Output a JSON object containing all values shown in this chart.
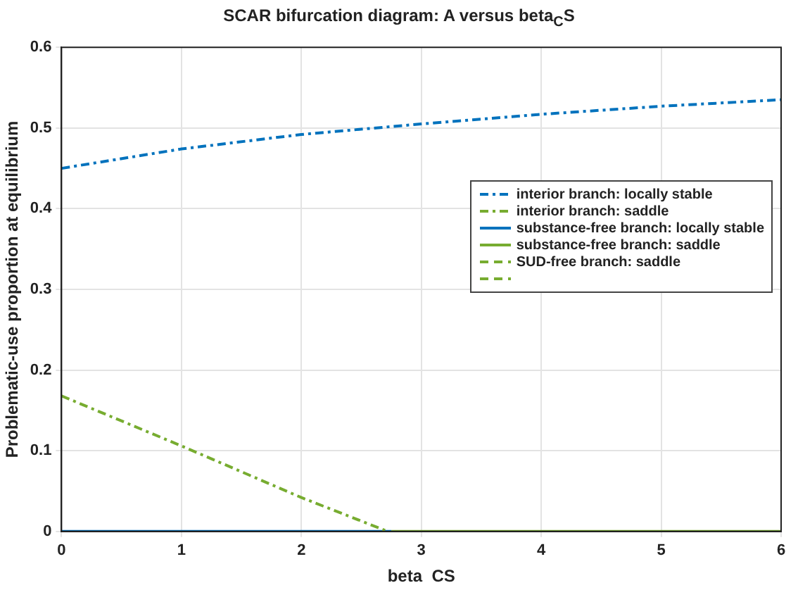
{
  "chart_data": {
    "type": "line",
    "title": "SCAR bifurcation diagram: A versus beta$_{C}$S",
    "xlabel": "beta  CS",
    "ylabel": "Problematic-use proportion at equilibrium",
    "xlim": [
      0,
      6
    ],
    "xticks": [
      0,
      1,
      2,
      3,
      4,
      5,
      6
    ],
    "ylim": [
      0,
      0.6
    ],
    "yticks": [
      0,
      0.1,
      0.2,
      0.3,
      0.4,
      0.5,
      0.6
    ],
    "grid": true,
    "legend": "right",
    "marker": "none",
    "series": [
      {
        "name": "interior branch: locally stable",
        "color": "#0072bd",
        "line_style": "dashdot",
        "x": [
          0,
          1,
          2,
          3,
          4,
          5,
          6
        ],
        "values": [
          0.45,
          0.474,
          0.492,
          0.505,
          0.517,
          0.527,
          0.535
        ]
      },
      {
        "name": "interior branch: saddle",
        "color": "#77ac30",
        "line_style": "dashdot",
        "x": [
          0,
          1,
          2,
          2.72
        ],
        "values": [
          0.168,
          0.106,
          0.042,
          0
        ]
      },
      {
        "name": "substance-free branch: locally stable",
        "color": "#0072bd",
        "line_style": "solid",
        "x": [
          0,
          2.75
        ],
        "values": [
          0,
          0
        ]
      },
      {
        "name": "substance-free branch: saddle",
        "color": "#77ac30",
        "line_style": "solid",
        "x": [
          2.75,
          6
        ],
        "values": [
          0,
          0
        ]
      },
      {
        "name": "SUD-free branch: saddle",
        "color": "#77ac30",
        "line_style": "dashed"
      },
      {
        "color": "#77ac30",
        "line_style": "dashed"
      }
    ]
  }
}
